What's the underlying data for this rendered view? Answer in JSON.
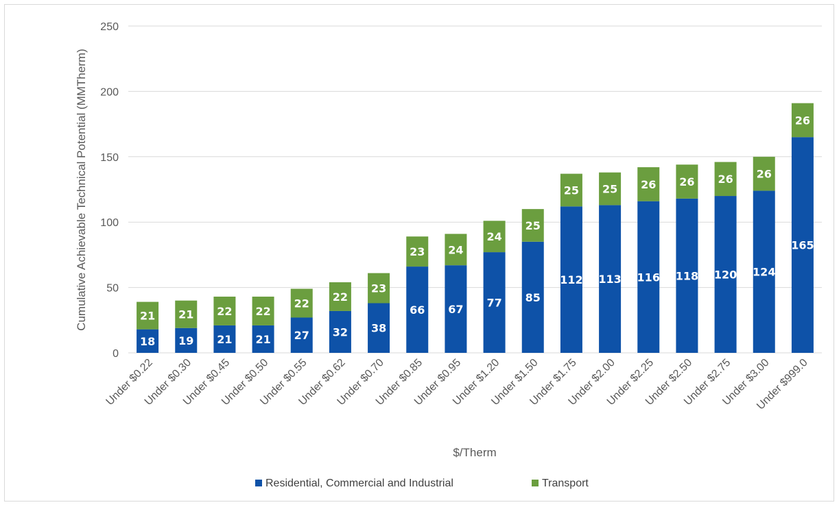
{
  "chart_data": {
    "type": "bar",
    "stacked": true,
    "categories": [
      "Under $0.22",
      "Under $0.30",
      "Under $0.45",
      "Under $0.50",
      "Under $0.55",
      "Under $0.62",
      "Under $0.70",
      "Under $0.85",
      "Under $0.95",
      "Under $1.20",
      "Under $1.50",
      "Under $1.75",
      "Under $2.00",
      "Under $2.25",
      "Under $2.50",
      "Under $2.75",
      "Under $3.00",
      "Under $999.0"
    ],
    "series": [
      {
        "name": "Residential, Commercial and Industrial",
        "color": "#0e52a8",
        "values": [
          18,
          19,
          21,
          21,
          27,
          32,
          38,
          66,
          67,
          77,
          85,
          112,
          113,
          116,
          118,
          120,
          124,
          165
        ]
      },
      {
        "name": "Transport",
        "color": "#6b9e3f",
        "values": [
          21,
          21,
          22,
          22,
          22,
          22,
          23,
          23,
          24,
          24,
          25,
          25,
          25,
          26,
          26,
          26,
          26,
          26
        ]
      }
    ],
    "xlabel": "$/Therm",
    "ylabel": "Cumulative Achievable Technical Potential (MMTherm)",
    "ylim": [
      0,
      250
    ],
    "yticks": [
      0,
      50,
      100,
      150,
      200,
      250
    ],
    "grid": true,
    "legend": "bottom"
  }
}
